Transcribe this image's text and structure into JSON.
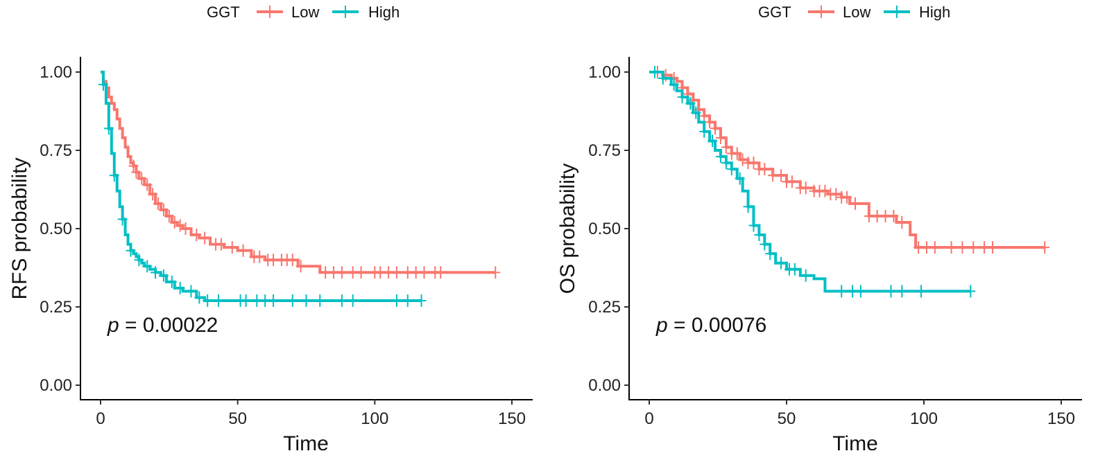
{
  "chart_data": [
    {
      "type": "line",
      "subtype": "kaplan-meier",
      "legend_title": "GGT",
      "legend_position": "top",
      "xlabel": "Time",
      "ylabel": "RFS probability",
      "xlim": [
        0,
        150
      ],
      "ylim": [
        0,
        1
      ],
      "x_ticks": [
        0,
        50,
        100,
        150
      ],
      "x_tick_labels": [
        "0",
        "50",
        "100",
        "150"
      ],
      "y_ticks": [
        0,
        0.25,
        0.5,
        0.75,
        1
      ],
      "y_tick_labels": [
        "0.00",
        "0.25",
        "0.50",
        "0.75",
        "1.00"
      ],
      "annotation": {
        "italic": "p",
        "text": " = 0.00022",
        "x": 2,
        "y": 0.19
      },
      "series": [
        {
          "name": "Low",
          "color": "#F8766D",
          "x": [
            0,
            1,
            2,
            3,
            4,
            5,
            6,
            7,
            8,
            9,
            10,
            11,
            12,
            13,
            14,
            16,
            18,
            20,
            22,
            24,
            26,
            28,
            30,
            33,
            36,
            40,
            45,
            50,
            55,
            60,
            65,
            72,
            80,
            144
          ],
          "y": [
            1.0,
            0.97,
            0.95,
            0.92,
            0.9,
            0.88,
            0.85,
            0.82,
            0.79,
            0.76,
            0.73,
            0.71,
            0.7,
            0.68,
            0.66,
            0.64,
            0.61,
            0.58,
            0.56,
            0.54,
            0.52,
            0.51,
            0.5,
            0.48,
            0.47,
            0.45,
            0.44,
            0.43,
            0.41,
            0.4,
            0.4,
            0.38,
            0.36,
            0.36
          ],
          "censor_x": [
            12,
            13,
            15,
            17,
            19,
            21,
            23,
            25,
            27,
            29,
            31,
            35,
            38,
            42,
            44,
            48,
            52,
            56,
            58,
            61,
            63,
            66,
            68,
            70,
            73,
            82,
            85,
            88,
            92,
            95,
            100,
            102,
            105,
            108,
            112,
            115,
            118,
            122,
            124,
            144
          ]
        },
        {
          "name": "High",
          "color": "#00BFC4",
          "x": [
            0,
            1,
            2,
            3,
            4,
            5,
            6,
            7,
            8,
            9,
            10,
            11,
            12,
            13,
            14,
            15,
            16,
            18,
            20,
            22,
            24,
            27,
            30,
            35,
            38,
            40,
            117
          ],
          "y": [
            1.0,
            0.96,
            0.9,
            0.82,
            0.74,
            0.67,
            0.62,
            0.57,
            0.53,
            0.48,
            0.45,
            0.43,
            0.42,
            0.41,
            0.4,
            0.39,
            0.38,
            0.37,
            0.36,
            0.35,
            0.33,
            0.31,
            0.3,
            0.28,
            0.27,
            0.27,
            0.27
          ],
          "censor_x": [
            1,
            3,
            5,
            8,
            11,
            14,
            17,
            20,
            23,
            26,
            29,
            33,
            36,
            39,
            43,
            51,
            53,
            57,
            60,
            63,
            70,
            75,
            80,
            88,
            92,
            108,
            112,
            117
          ]
        }
      ]
    },
    {
      "type": "line",
      "subtype": "kaplan-meier",
      "legend_title": "GGT",
      "legend_position": "top",
      "xlabel": "Time",
      "ylabel": "OS probability",
      "xlim": [
        0,
        150
      ],
      "ylim": [
        0,
        1
      ],
      "x_ticks": [
        0,
        50,
        100,
        150
      ],
      "x_tick_labels": [
        "0",
        "50",
        "100",
        "150"
      ],
      "y_ticks": [
        0,
        0.25,
        0.5,
        0.75,
        1
      ],
      "y_tick_labels": [
        "0.00",
        "0.25",
        "0.50",
        "0.75",
        "1.00"
      ],
      "annotation": {
        "italic": "p",
        "text": " = 0.00076",
        "x": 2,
        "y": 0.19
      },
      "series": [
        {
          "name": "Low",
          "color": "#F8766D",
          "x": [
            0,
            5,
            8,
            10,
            12,
            14,
            16,
            18,
            20,
            22,
            24,
            26,
            28,
            30,
            33,
            36,
            40,
            45,
            50,
            55,
            60,
            65,
            70,
            73,
            80,
            85,
            90,
            95,
            97,
            144
          ],
          "y": [
            1.0,
            0.99,
            0.98,
            0.97,
            0.95,
            0.93,
            0.91,
            0.88,
            0.86,
            0.84,
            0.82,
            0.79,
            0.76,
            0.74,
            0.72,
            0.71,
            0.69,
            0.67,
            0.65,
            0.63,
            0.62,
            0.61,
            0.6,
            0.58,
            0.54,
            0.54,
            0.52,
            0.48,
            0.44,
            0.44
          ],
          "censor_x": [
            3,
            6,
            9,
            12,
            14,
            16,
            18,
            20,
            22,
            24,
            26,
            28,
            30,
            32,
            34,
            36,
            38,
            40,
            42,
            45,
            48,
            50,
            52,
            55,
            57,
            60,
            62,
            64,
            66,
            68,
            70,
            72,
            75,
            80,
            83,
            86,
            89,
            92,
            98,
            101,
            104,
            110,
            114,
            118,
            122,
            125,
            144
          ]
        },
        {
          "name": "High",
          "color": "#00BFC4",
          "x": [
            0,
            5,
            8,
            10,
            12,
            14,
            16,
            18,
            20,
            22,
            24,
            26,
            28,
            30,
            32,
            34,
            36,
            38,
            40,
            42,
            44,
            46,
            50,
            55,
            60,
            64,
            117
          ],
          "y": [
            1.0,
            0.98,
            0.96,
            0.94,
            0.92,
            0.9,
            0.87,
            0.84,
            0.81,
            0.78,
            0.75,
            0.73,
            0.71,
            0.69,
            0.66,
            0.62,
            0.57,
            0.51,
            0.48,
            0.45,
            0.42,
            0.39,
            0.37,
            0.35,
            0.34,
            0.3,
            0.3
          ],
          "censor_x": [
            2,
            5,
            9,
            12,
            15,
            17,
            20,
            23,
            26,
            28,
            30,
            33,
            36,
            38,
            40,
            42,
            44,
            48,
            51,
            53,
            57,
            70,
            74,
            77,
            88,
            92,
            99,
            117
          ]
        }
      ]
    }
  ]
}
